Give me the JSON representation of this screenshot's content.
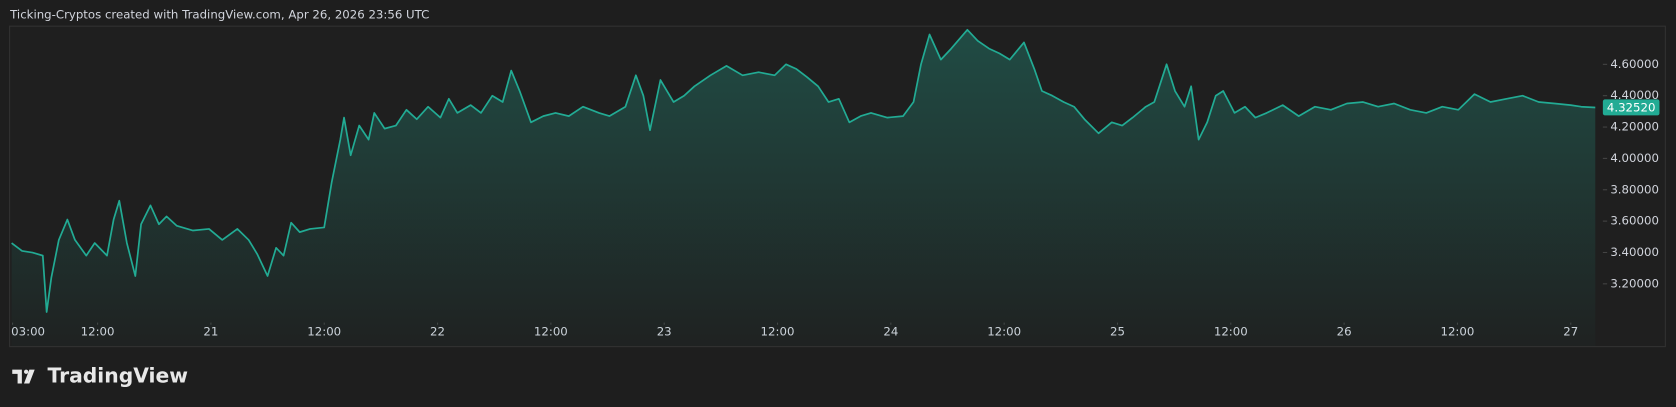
{
  "header": "Ticking-Cryptos created with TradingView.com, Apr 26, 2026 23:56 UTC",
  "brand": "TradingView",
  "chart_data": {
    "type": "area",
    "color": "#22ab94",
    "grid": false,
    "x": [
      2.9,
      4.0,
      5.1,
      6.2,
      6.6,
      7.1,
      7.9,
      8.8,
      9.6,
      10.8,
      11.7,
      13.0,
      13.7,
      14.3,
      15.1,
      16.0,
      16.6,
      17.6,
      18.5,
      19.3,
      20.4,
      22.1,
      23.8,
      25.2,
      26.8,
      28.0,
      28.9,
      30.0,
      30.9,
      31.7,
      32.5,
      33.4,
      34.5,
      36.0,
      36.8,
      37.7,
      38.1,
      38.8,
      39.7,
      40.7,
      41.3,
      42.4,
      43.6,
      44.7,
      45.8,
      47.0,
      48.3,
      49.2,
      50.1,
      51.5,
      52.6,
      53.8,
      54.9,
      55.8,
      56.7,
      57.9,
      59.2,
      60.5,
      61.9,
      63.4,
      65.1,
      66.2,
      67.9,
      69.0,
      69.8,
      70.5,
      71.6,
      73.0,
      74.1,
      75.2,
      76.9,
      78.6,
      80.3,
      82.0,
      83.7,
      84.9,
      86.0,
      87.1,
      88.3,
      89.4,
      90.5,
      91.6,
      92.8,
      93.9,
      95.6,
      97.3,
      98.4,
      99.2,
      100.1,
      101.3,
      102.4,
      104.1,
      105.2,
      106.4,
      107.5,
      108.6,
      110.1,
      111.2,
      112.0,
      113.1,
      114.3,
      115.4,
      116.5,
      118.0,
      119.4,
      120.5,
      121.6,
      123.0,
      123.9,
      125.2,
      126.1,
      127.1,
      127.8,
      128.6,
      129.5,
      130.4,
      131.2,
      132.4,
      133.5,
      134.6,
      135.8,
      137.5,
      139.2,
      140.9,
      142.6,
      144.3,
      146.0,
      147.6,
      149.3,
      151.0,
      152.7,
      154.4,
      156.1,
      157.8,
      159.5,
      161.2,
      162.9,
      164.6,
      166.3,
      168.0,
      169.1,
      170.6
    ],
    "values": [
      3.46,
      3.41,
      3.4,
      3.38,
      3.02,
      3.24,
      3.48,
      3.61,
      3.48,
      3.38,
      3.46,
      3.38,
      3.61,
      3.73,
      3.46,
      3.25,
      3.58,
      3.7,
      3.58,
      3.63,
      3.57,
      3.54,
      3.55,
      3.48,
      3.55,
      3.48,
      3.39,
      3.25,
      3.43,
      3.38,
      3.59,
      3.53,
      3.55,
      3.56,
      3.85,
      4.12,
      4.26,
      4.02,
      4.21,
      4.12,
      4.29,
      4.19,
      4.21,
      4.31,
      4.25,
      4.33,
      4.26,
      4.38,
      4.29,
      4.34,
      4.29,
      4.4,
      4.36,
      4.56,
      4.43,
      4.23,
      4.27,
      4.29,
      4.27,
      4.33,
      4.29,
      4.27,
      4.33,
      4.53,
      4.4,
      4.18,
      4.5,
      4.36,
      4.4,
      4.46,
      4.53,
      4.59,
      4.53,
      4.55,
      4.53,
      4.6,
      4.57,
      4.52,
      4.46,
      4.36,
      4.38,
      4.23,
      4.27,
      4.29,
      4.26,
      4.27,
      4.36,
      4.6,
      4.79,
      4.63,
      4.7,
      4.82,
      4.75,
      4.7,
      4.67,
      4.63,
      4.74,
      4.57,
      4.43,
      4.4,
      4.36,
      4.33,
      4.25,
      4.16,
      4.23,
      4.21,
      4.26,
      4.33,
      4.36,
      4.6,
      4.43,
      4.33,
      4.46,
      4.12,
      4.23,
      4.4,
      4.43,
      4.29,
      4.33,
      4.26,
      4.29,
      4.34,
      4.27,
      4.33,
      4.31,
      4.35,
      4.36,
      4.33,
      4.35,
      4.31,
      4.29,
      4.33,
      4.31,
      4.41,
      4.36,
      4.38,
      4.4,
      4.36,
      4.35,
      4.34,
      4.33,
      4.3252
    ],
    "xlim": [
      2.85,
      171.4
    ],
    "xticks": [
      {
        "value": 3,
        "label": "03:00"
      },
      {
        "value": 12,
        "label": "12:00"
      },
      {
        "value": 24,
        "label": "21"
      },
      {
        "value": 36,
        "label": "12:00"
      },
      {
        "value": 48,
        "label": "22"
      },
      {
        "value": 60,
        "label": "12:00"
      },
      {
        "value": 72,
        "label": "23"
      },
      {
        "value": 84,
        "label": "12:00"
      },
      {
        "value": 96,
        "label": "24"
      },
      {
        "value": 108,
        "label": "12:00"
      },
      {
        "value": 120,
        "label": "25"
      },
      {
        "value": 132,
        "label": "12:00"
      },
      {
        "value": 144,
        "label": "26"
      },
      {
        "value": 156,
        "label": "12:00"
      },
      {
        "value": 168,
        "label": "27"
      }
    ],
    "ylim": [
      2.98,
      4.84
    ],
    "yticks": [
      {
        "value": 3.2,
        "label": "3.20000"
      },
      {
        "value": 3.4,
        "label": "3.40000"
      },
      {
        "value": 3.6,
        "label": "3.60000"
      },
      {
        "value": 3.8,
        "label": "3.80000"
      },
      {
        "value": 4.0,
        "label": "4.00000"
      },
      {
        "value": 4.2,
        "label": "4.20000"
      },
      {
        "value": 4.4,
        "label": "4.40000"
      },
      {
        "value": 4.6,
        "label": "4.60000"
      }
    ],
    "price_marker": {
      "value": 4.3252,
      "label": "4.32520"
    }
  }
}
